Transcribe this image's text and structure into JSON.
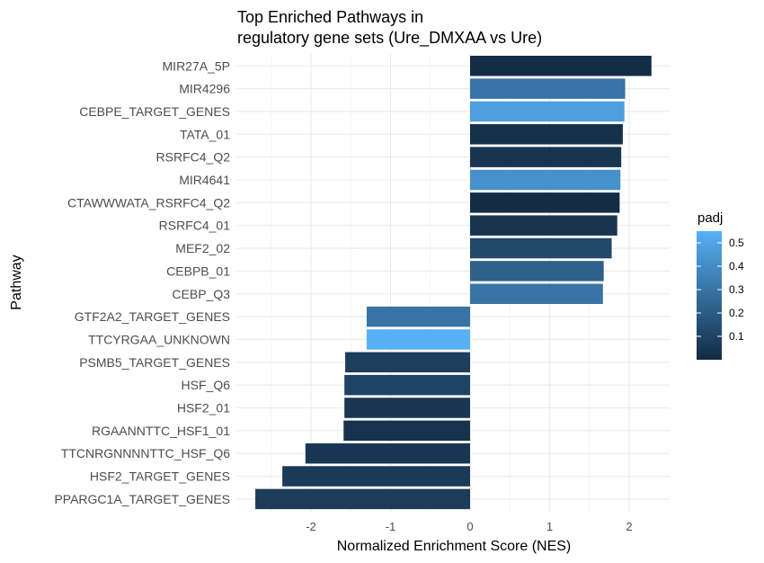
{
  "chart_data": {
    "type": "bar",
    "orientation": "horizontal",
    "title_lines": [
      "Top Enriched Pathways in",
      "regulatory gene sets (Ure_DMXAA vs Ure)"
    ],
    "xlabel": "Normalized Enrichment Score (NES)",
    "ylabel": "Pathway",
    "xlim": [
      -2.7,
      2.5
    ],
    "x_ticks": [
      -2,
      -1,
      0,
      1,
      2
    ],
    "x_tick_labels": [
      "-2",
      "-1",
      "0",
      "1",
      "2"
    ],
    "grid": true,
    "categories": [
      "MIR27A_5P",
      "MIR4296",
      "CEBPE_TARGET_GENES",
      "TATA_01",
      "RSRFC4_Q2",
      "MIR4641",
      "CTAWWWATA_RSRFC4_Q2",
      "RSRFC4_01",
      "MEF2_02",
      "CEBPB_01",
      "CEBP_Q3",
      "GTF2A2_TARGET_GENES",
      "TTCYRGAA_UNKNOWN",
      "PSMB5_TARGET_GENES",
      "HSF_Q6",
      "HSF2_01",
      "RGAANNTTC_HSF1_01",
      "TTCNRGNNNNTTC_HSF_Q6",
      "HSF2_TARGET_GENES",
      "PPARGC1A_TARGET_GENES"
    ],
    "values": [
      2.28,
      1.95,
      1.94,
      1.92,
      1.9,
      1.89,
      1.88,
      1.85,
      1.78,
      1.68,
      1.67,
      -1.3,
      -1.3,
      -1.57,
      -1.58,
      -1.58,
      -1.59,
      -2.07,
      -2.36,
      -2.7
    ],
    "padj": [
      0.01,
      0.3,
      0.47,
      0.02,
      0.04,
      0.42,
      0.01,
      0.04,
      0.12,
      0.22,
      0.3,
      0.3,
      0.55,
      0.08,
      0.1,
      0.05,
      0.03,
      0.05,
      0.06,
      0.07
    ],
    "color_scale": {
      "name": "padj",
      "low_color": "#132B43",
      "high_color": "#56B1F7",
      "range": [
        0.0,
        0.55
      ],
      "ticks": [
        0.1,
        0.2,
        0.3,
        0.4,
        0.5
      ],
      "tick_labels": [
        "0.1",
        "0.2",
        "0.3",
        "0.4",
        "0.5"
      ]
    },
    "legend_position": "right"
  }
}
